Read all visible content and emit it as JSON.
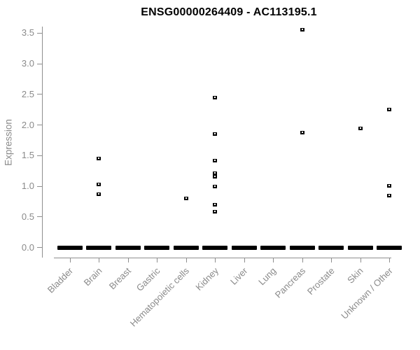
{
  "title": "ENSG00000264409 - AC113195.1",
  "axes": {
    "y_label": "Expression",
    "y_tick_labels": [
      "0.0",
      "0.5",
      "1.0",
      "1.5",
      "2.0",
      "2.5",
      "3.0",
      "3.5"
    ],
    "x_category_labels": [
      "Bladder",
      "Brain",
      "Breast",
      "Gastric",
      "Hematopoietic cells",
      "Kidney",
      "Liver",
      "Lung",
      "Pancreas",
      "Prostate",
      "Skin",
      "Unknown / Other"
    ]
  },
  "colors": {
    "marker": "#000000",
    "axis_line": "#8e8e8e",
    "axis_text": "#8a8a8a",
    "title_text": "#000000",
    "background": "#ffffff"
  },
  "chart_data": {
    "type": "scatter",
    "title": "ENSG00000264409 - AC113195.1",
    "xlabel": "",
    "ylabel": "Expression",
    "ylim": [
      0,
      3.5
    ],
    "y_ticks": [
      0,
      0.5,
      1.0,
      1.5,
      2.0,
      2.5,
      3.0,
      3.5
    ],
    "grid": false,
    "legend": false,
    "marker_style": "small-open-square",
    "categories": [
      "Bladder",
      "Brain",
      "Breast",
      "Gastric",
      "Hematopoietic cells",
      "Kidney",
      "Liver",
      "Lung",
      "Pancreas",
      "Prostate",
      "Skin",
      "Unknown / Other"
    ],
    "series": [
      {
        "category": "Bladder",
        "nonzero_values": [],
        "zero_cluster": true
      },
      {
        "category": "Brain",
        "nonzero_values": [
          1.45,
          1.03,
          0.87
        ],
        "zero_cluster": true
      },
      {
        "category": "Breast",
        "nonzero_values": [],
        "zero_cluster": true
      },
      {
        "category": "Gastric",
        "nonzero_values": [],
        "zero_cluster": true
      },
      {
        "category": "Hematopoietic cells",
        "nonzero_values": [
          0.8
        ],
        "zero_cluster": true
      },
      {
        "category": "Kidney",
        "nonzero_values": [
          2.45,
          1.85,
          1.42,
          1.21,
          1.15,
          0.99,
          0.7,
          0.58
        ],
        "zero_cluster": true
      },
      {
        "category": "Liver",
        "nonzero_values": [],
        "zero_cluster": true
      },
      {
        "category": "Lung",
        "nonzero_values": [],
        "zero_cluster": true
      },
      {
        "category": "Pancreas",
        "nonzero_values": [
          3.56,
          1.88
        ],
        "zero_cluster": true
      },
      {
        "category": "Prostate",
        "nonzero_values": [],
        "zero_cluster": true
      },
      {
        "category": "Skin",
        "nonzero_values": [
          1.95
        ],
        "zero_cluster": true
      },
      {
        "category": "Unknown / Other",
        "nonzero_values": [
          2.25,
          1.01,
          0.85
        ],
        "zero_cluster": true
      }
    ]
  }
}
